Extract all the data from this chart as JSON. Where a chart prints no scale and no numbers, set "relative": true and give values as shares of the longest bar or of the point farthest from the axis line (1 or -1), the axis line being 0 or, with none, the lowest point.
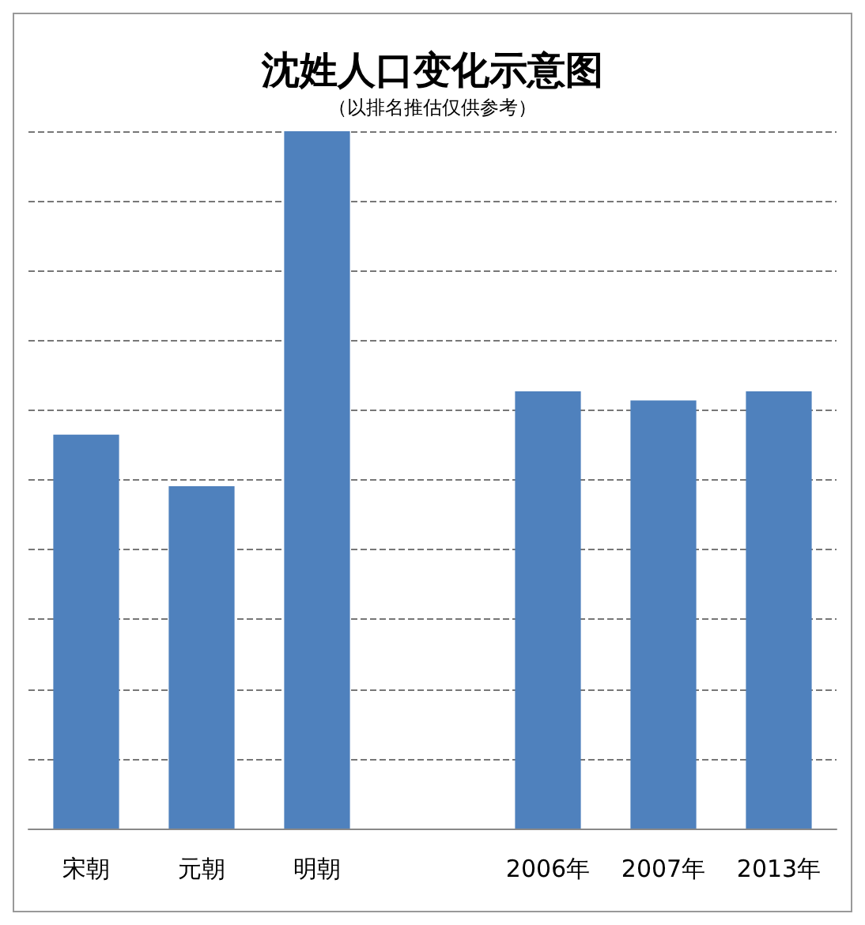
{
  "chart_data": {
    "type": "bar",
    "title": "沈姓人口变化示意图",
    "subtitle": "（以排名推估仅供参考）",
    "categories": [
      "宋朝",
      "元朝",
      "明朝",
      null,
      "2006年",
      "2007年",
      "2013年"
    ],
    "values": [
      0.565,
      0.491,
      1,
      null,
      0.627,
      0.614,
      0.627
    ],
    "color": "#4f81bd",
    "relative": true,
    "grid": "y"
  }
}
